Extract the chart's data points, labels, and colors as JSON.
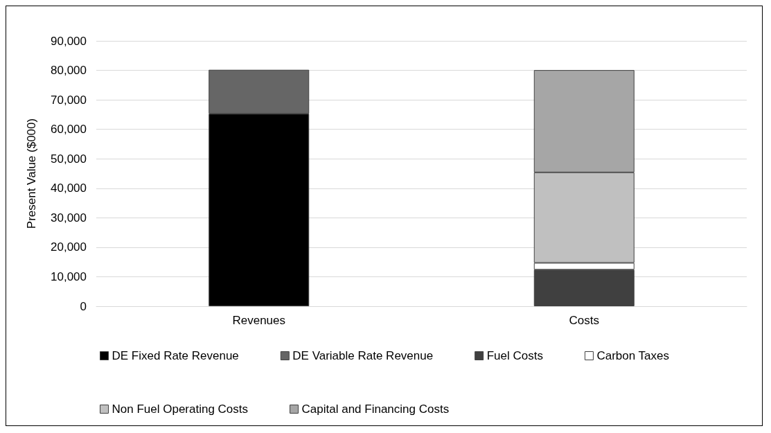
{
  "chart_data": {
    "type": "bar",
    "stacked": true,
    "ylabel": "Present Value ($000)",
    "categories": [
      "Revenues",
      "Costs"
    ],
    "series": [
      {
        "name": "DE Fixed Rate Revenue",
        "color": "#000000",
        "values": [
          65300,
          null
        ]
      },
      {
        "name": "DE Variable Rate Revenue",
        "color": "#666666",
        "values": [
          14900,
          null
        ]
      },
      {
        "name": "Fuel Costs",
        "color": "#404040",
        "values": [
          null,
          12400
        ]
      },
      {
        "name": "Carbon Taxes",
        "color": "#ffffff",
        "values": [
          null,
          2300
        ]
      },
      {
        "name": "Non Fuel Operating Costs",
        "color": "#c0c0c0",
        "values": [
          null,
          30700
        ]
      },
      {
        "name": "Capital and Financing Costs",
        "color": "#a6a6a6",
        "values": [
          null,
          34700
        ]
      }
    ],
    "ylim": [
      0,
      90000
    ],
    "yticks": [
      0,
      {
        "value": 10000,
        "label": "10,000"
      },
      {
        "value": 20000,
        "label": "20,000"
      },
      {
        "value": 30000,
        "label": "30,000"
      },
      {
        "value": 40000,
        "label": "40,000"
      },
      {
        "value": 50000,
        "label": "50,000"
      },
      {
        "value": 60000,
        "label": "60,000"
      },
      {
        "value": 70000,
        "label": "70,000"
      },
      {
        "value": 80000,
        "label": "80,000"
      },
      {
        "value": 90000,
        "label": "90,000"
      }
    ],
    "grid": "y",
    "legend": "bottom"
  }
}
